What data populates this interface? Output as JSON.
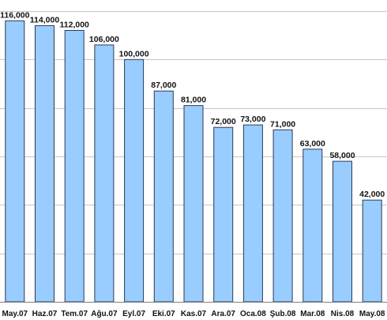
{
  "chart_data": {
    "type": "bar",
    "title": "",
    "xlabel": "",
    "ylabel": "",
    "categories": [
      "May.07",
      "Haz.07",
      "Tem.07",
      "Ağu.07",
      "Eyl.07",
      "Eki.07",
      "Kas.07",
      "Ara.07",
      "Oca.08",
      "Şub.08",
      "Mar.08",
      "Nis.08",
      "May.08"
    ],
    "values": [
      116000,
      114000,
      112000,
      106000,
      100000,
      87000,
      81000,
      72000,
      73000,
      71000,
      63000,
      58000,
      42000
    ],
    "data_labels": [
      "116,000",
      "114,000",
      "112,000",
      "106,000",
      "100,000",
      "87,000",
      "81,000",
      "72,000",
      "73,000",
      "71,000",
      "63,000",
      "58,000",
      "42,000"
    ],
    "ylim": [
      0,
      120000
    ],
    "ygrid_step": 20000,
    "grid": true,
    "legend": "none",
    "bar_color": "#99ccff",
    "bar_border_color": "#2b3a55"
  }
}
